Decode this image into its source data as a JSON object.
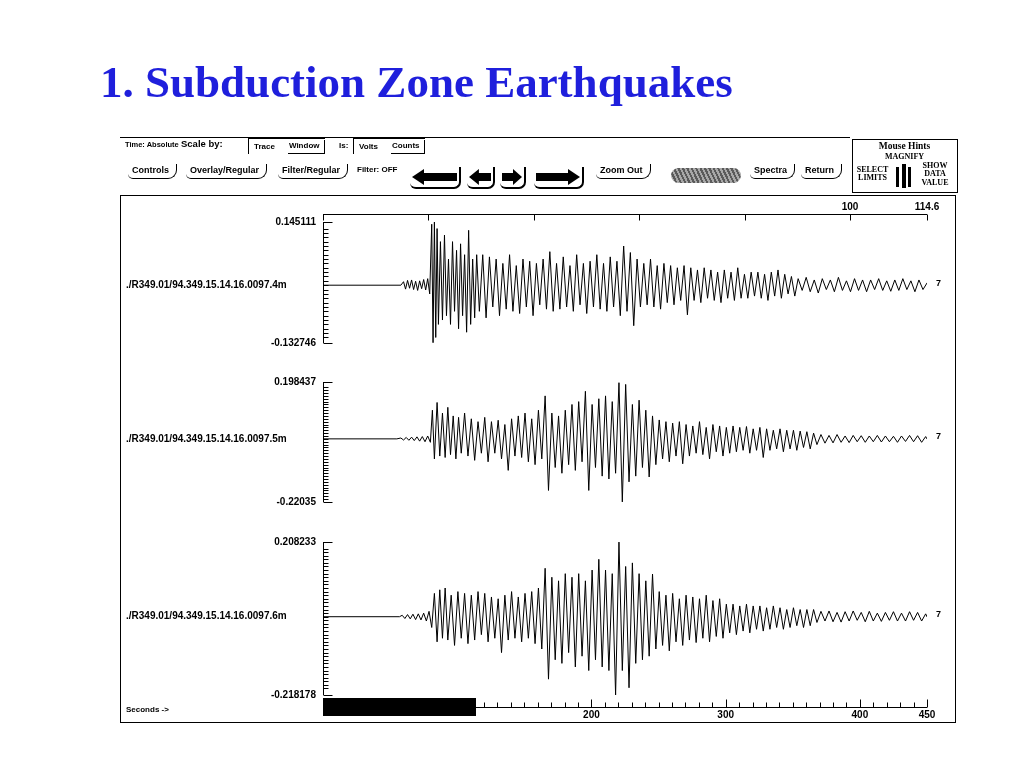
{
  "chart_data": [
    {
      "type": "other",
      "title": "1. Subduction Zone Earthquakes",
      "annotations": [
        "Time: Absolute",
        "Scale by:",
        "Trace",
        "Window",
        "Is:",
        "Volts",
        "Counts",
        "Controls",
        "Overlay/Regular",
        "Filter/Regular",
        "Filter: OFF",
        "Zoom Out",
        "Spectra",
        "Return",
        "Mouse Hints",
        "MAGNIFY",
        "SELECT LIMITS",
        "SHOW DATA VALUE"
      ]
    },
    {
      "type": "line",
      "xlim": [
        0,
        450
      ],
      "x2lim": [
        0,
        114.6
      ],
      "x2ticks": [
        {
          "value": 0,
          "label": null
        },
        {
          "value": 20,
          "label": null
        },
        {
          "value": 40,
          "label": null
        },
        {
          "value": 60,
          "label": null
        },
        {
          "value": 80,
          "label": null
        },
        100,
        114.6
      ],
      "ylim": [
        -0.132746,
        0.145111
      ],
      "yticks": [
        0.145111,
        {
          "value": 0.13,
          "label": null
        },
        {
          "value": 0.12,
          "label": null
        },
        {
          "value": 0.11,
          "label": null
        },
        {
          "value": 0.1,
          "label": null
        },
        {
          "value": 0.09,
          "label": null
        },
        {
          "value": 0.08,
          "label": null
        },
        {
          "value": 0.07,
          "label": null
        },
        {
          "value": 0.06,
          "label": null
        },
        {
          "value": 0.05,
          "label": null
        },
        {
          "value": 0.04,
          "label": null
        },
        {
          "value": 0.03,
          "label": null
        },
        {
          "value": 0.02,
          "label": null
        },
        {
          "value": 0.01,
          "label": null
        },
        {
          "value": 0,
          "label": null
        },
        {
          "value": -0.01,
          "label": null
        },
        {
          "value": -0.02,
          "label": null
        },
        {
          "value": -0.03,
          "label": null
        },
        {
          "value": -0.04,
          "label": null
        },
        {
          "value": -0.05,
          "label": null
        },
        {
          "value": -0.06,
          "label": null
        },
        {
          "value": -0.07,
          "label": null
        },
        {
          "value": -0.08,
          "label": null
        },
        {
          "value": -0.09,
          "label": null
        },
        {
          "value": -0.1,
          "label": null
        },
        {
          "value": -0.11,
          "label": null
        },
        {
          "value": -0.12,
          "label": null
        },
        -0.132746
      ],
      "tick_labels": "x2y",
      "annotations": [
        "7"
      ],
      "series": [
        {
          "name": "./R349.01/94.349.15.14.16.0097.4m",
          "color": "#000000",
          "x": [
            0,
            58,
            60,
            61.5,
            63,
            64.5,
            66,
            67.5,
            69,
            70.5,
            72,
            73.5,
            75,
            76.5,
            78,
            79.5,
            81,
            82,
            83,
            84,
            85,
            86,
            87.5,
            89,
            90.5,
            92,
            93.5,
            95,
            96.5,
            98,
            99.5,
            101,
            102.5,
            104,
            105.5,
            107,
            108.5,
            110,
            111.5,
            113,
            114.5,
            116.5,
            119,
            121.5,
            124,
            126.5,
            129,
            131.5,
            134,
            136.5,
            139,
            141.5,
            144,
            146.5,
            149,
            151.5,
            154,
            156.5,
            159,
            161.5,
            164,
            166.5,
            169,
            171.5,
            174,
            176.5,
            179,
            181.5,
            184,
            186.5,
            189,
            191.5,
            194,
            196.5,
            199,
            201.5,
            204,
            206.5,
            209,
            211.5,
            214,
            216.5,
            219,
            221.5,
            224,
            226.5,
            229,
            231.5,
            234,
            236.5,
            239,
            241.5,
            244,
            246.5,
            249,
            251.5,
            254,
            256.5,
            259,
            261.5,
            264,
            266.5,
            269,
            271.5,
            274,
            276.5,
            279,
            281.5,
            284,
            286.5,
            289,
            291.5,
            294,
            296.5,
            299,
            301.5,
            304,
            306.5,
            309,
            311.5,
            314,
            316.5,
            319,
            321.5,
            324,
            326.5,
            329,
            331.5,
            334,
            336.5,
            339,
            341.5,
            344,
            346.5,
            349,
            351.5,
            354,
            357,
            360,
            363,
            366,
            369,
            372,
            375,
            378,
            381,
            384,
            387,
            390,
            393,
            396,
            399,
            402,
            405,
            408,
            411,
            414,
            417,
            420,
            423,
            426,
            429,
            432,
            435,
            438,
            441,
            444,
            447,
            450
          ],
          "values": [
            0,
            0,
            0.008,
            -0.009,
            0.011,
            -0.007,
            0.012,
            -0.01,
            0.009,
            -0.012,
            0.01,
            -0.008,
            0.013,
            -0.011,
            0.015,
            -0.02,
            0.14,
            -0.132,
            0.145,
            -0.12,
            0.13,
            -0.09,
            0.1,
            -0.08,
            0.115,
            -0.07,
            0.06,
            -0.09,
            0.1,
            -0.06,
            0.08,
            -0.1,
            0.095,
            -0.07,
            0.07,
            -0.108,
            0.126,
            -0.09,
            0.06,
            -0.075,
            0.07,
            -0.06,
            0.07,
            -0.075,
            0.065,
            -0.05,
            0.06,
            -0.07,
            0.05,
            -0.055,
            0.07,
            -0.06,
            0.045,
            -0.065,
            0.06,
            -0.05,
            0.055,
            -0.07,
            0.05,
            -0.045,
            0.06,
            -0.055,
            0.077,
            -0.06,
            0.05,
            -0.055,
            0.065,
            -0.05,
            0.045,
            -0.06,
            0.07,
            -0.045,
            0.05,
            -0.065,
            0.055,
            -0.05,
            0.07,
            -0.055,
            0.05,
            -0.06,
            0.065,
            -0.05,
            0.055,
            -0.07,
            0.09,
            -0.06,
            0.075,
            -0.093,
            0.06,
            -0.05,
            0.05,
            -0.045,
            0.06,
            -0.05,
            0.045,
            -0.055,
            0.05,
            -0.04,
            0.045,
            -0.045,
            0.04,
            -0.035,
            0.045,
            -0.068,
            0.04,
            -0.035,
            0.035,
            -0.04,
            0.04,
            -0.03,
            0.035,
            -0.035,
            0.03,
            -0.04,
            0.035,
            -0.03,
            0.03,
            -0.035,
            0.04,
            -0.03,
            0.025,
            -0.03,
            0.03,
            -0.025,
            0.03,
            -0.03,
            0.025,
            -0.035,
            0.03,
            -0.025,
            0.035,
            -0.03,
            0.025,
            -0.02,
            0.02,
            -0.025,
            0.015,
            -0.012,
            0.018,
            -0.015,
            0.012,
            -0.018,
            0.015,
            -0.01,
            0.012,
            -0.015,
            0.018,
            -0.012,
            0.01,
            -0.015,
            0.015,
            -0.012,
            0.012,
            -0.015,
            0.012,
            -0.01,
            0.015,
            -0.012,
            0.01,
            -0.014,
            0.012,
            -0.012,
            0.015,
            -0.01,
            0.01,
            -0.015,
            0.012,
            -0.01,
            0.005
          ]
        }
      ]
    },
    {
      "type": "line",
      "xlim": [
        0,
        450
      ],
      "ylim": [
        -0.22035,
        0.198437
      ],
      "yticks": [
        0.198437,
        {
          "value": 0.18,
          "label": null
        },
        {
          "value": 0.17,
          "label": null
        },
        {
          "value": 0.16,
          "label": null
        },
        {
          "value": 0.15,
          "label": null
        },
        {
          "value": 0.14,
          "label": null
        },
        {
          "value": 0.13,
          "label": null
        },
        {
          "value": 0.12,
          "label": null
        },
        {
          "value": 0.11,
          "label": null
        },
        {
          "value": 0.1,
          "label": null
        },
        {
          "value": 0.09,
          "label": null
        },
        {
          "value": 0.08,
          "label": null
        },
        {
          "value": 0.07,
          "label": null
        },
        {
          "value": 0.06,
          "label": null
        },
        {
          "value": 0.05,
          "label": null
        },
        {
          "value": 0.04,
          "label": null
        },
        {
          "value": 0.03,
          "label": null
        },
        {
          "value": 0.02,
          "label": null
        },
        {
          "value": 0.01,
          "label": null
        },
        {
          "value": 0,
          "label": null
        },
        {
          "value": -0.01,
          "label": null
        },
        {
          "value": -0.02,
          "label": null
        },
        {
          "value": -0.03,
          "label": null
        },
        {
          "value": -0.04,
          "label": null
        },
        {
          "value": -0.05,
          "label": null
        },
        {
          "value": -0.06,
          "label": null
        },
        {
          "value": -0.07,
          "label": null
        },
        {
          "value": -0.08,
          "label": null
        },
        {
          "value": -0.09,
          "label": null
        },
        {
          "value": -0.1,
          "label": null
        },
        {
          "value": -0.11,
          "label": null
        },
        {
          "value": -0.12,
          "label": null
        },
        {
          "value": -0.13,
          "label": null
        },
        {
          "value": -0.14,
          "label": null
        },
        {
          "value": -0.15,
          "label": null
        },
        {
          "value": -0.16,
          "label": null
        },
        {
          "value": -0.17,
          "label": null
        },
        {
          "value": -0.18,
          "label": null
        },
        {
          "value": -0.19,
          "label": null
        },
        {
          "value": -0.2,
          "label": null
        },
        {
          "value": -0.21,
          "label": null
        },
        -0.22035
      ],
      "tick_labels": "y",
      "annotations": [
        "7"
      ],
      "series": [
        {
          "name": "./R349.01/94.349.15.14.16.0097.5m",
          "color": "#000000",
          "x": [
            0,
            55,
            58,
            60,
            62,
            64,
            66,
            68,
            70,
            72,
            74,
            76,
            78,
            80,
            81.5,
            83,
            85,
            87,
            89,
            91,
            93,
            95,
            97,
            99,
            101,
            103,
            105.5,
            108,
            110.5,
            113,
            115.5,
            118,
            120.5,
            123,
            125.5,
            128,
            130.5,
            133,
            135.5,
            138,
            140.5,
            143,
            145.5,
            148,
            150.5,
            153,
            155.5,
            158,
            160.5,
            163,
            165.5,
            168,
            170.5,
            173,
            175.5,
            178,
            180.5,
            183,
            185.5,
            188,
            190.5,
            193,
            195.5,
            198,
            200.5,
            203,
            205.5,
            208,
            210.5,
            213,
            215.5,
            218,
            220.5,
            223,
            225.5,
            228,
            230.5,
            233,
            235.5,
            238,
            240.5,
            243,
            245.5,
            248,
            250.5,
            253,
            255.5,
            258,
            260.5,
            263,
            265.5,
            268,
            270.5,
            273,
            275.5,
            278,
            280.5,
            283,
            285.5,
            288,
            290.5,
            293,
            295.5,
            298,
            300.5,
            303,
            305.5,
            308,
            310.5,
            313,
            315.5,
            318,
            320.5,
            323,
            325.5,
            328,
            330.5,
            333,
            335.5,
            338,
            340.5,
            343,
            345.5,
            348,
            350.5,
            353,
            355.5,
            358,
            360.5,
            363,
            365.5,
            368,
            371,
            374,
            377,
            380,
            383,
            386,
            389,
            392,
            395,
            398,
            401,
            404,
            407,
            410,
            413,
            416,
            419,
            422,
            425,
            428,
            431,
            434,
            437,
            440,
            443,
            446,
            449,
            450
          ],
          "values": [
            0,
            0,
            0.003,
            -0.004,
            0.005,
            -0.005,
            0.006,
            -0.006,
            0.007,
            -0.008,
            0.008,
            -0.01,
            0.01,
            -0.012,
            0.1,
            -0.07,
            0.127,
            -0.06,
            0.09,
            -0.065,
            0.11,
            -0.055,
            0.08,
            -0.07,
            0.075,
            -0.05,
            0.09,
            -0.06,
            0.07,
            -0.075,
            0.06,
            -0.05,
            0.075,
            -0.08,
            0.06,
            -0.05,
            0.065,
            -0.07,
            0.05,
            -0.11,
            0.07,
            -0.06,
            0.08,
            -0.065,
            0.09,
            -0.08,
            0.07,
            -0.09,
            0.1,
            -0.07,
            0.15,
            -0.18,
            0.09,
            -0.1,
            0.08,
            -0.12,
            0.1,
            -0.09,
            0.12,
            -0.11,
            0.13,
            -0.08,
            0.166,
            -0.18,
            0.12,
            -0.1,
            0.14,
            -0.13,
            0.15,
            -0.14,
            0.13,
            -0.12,
            0.196,
            -0.22,
            0.19,
            -0.15,
            0.12,
            -0.13,
            0.135,
            -0.1,
            0.1,
            -0.133,
            0.08,
            -0.09,
            0.066,
            -0.07,
            0.06,
            -0.08,
            0.055,
            -0.06,
            0.06,
            -0.087,
            0.05,
            -0.06,
            0.045,
            -0.05,
            0.06,
            -0.055,
            0.04,
            -0.07,
            0.05,
            -0.045,
            0.045,
            -0.06,
            0.04,
            -0.05,
            0.045,
            -0.045,
            0.04,
            -0.04,
            0.043,
            -0.05,
            0.035,
            -0.04,
            0.04,
            -0.065,
            0.035,
            -0.04,
            0.03,
            -0.035,
            0.035,
            -0.045,
            0.03,
            -0.035,
            0.03,
            -0.04,
            0.027,
            -0.03,
            0.025,
            -0.035,
            0.02,
            -0.02,
            0.015,
            -0.015,
            0.012,
            -0.014,
            0.015,
            -0.012,
            0.01,
            -0.013,
            0.012,
            -0.01,
            0.011,
            -0.012,
            0.01,
            -0.01,
            0.012,
            -0.011,
            0.01,
            -0.01,
            0.009,
            -0.012,
            0.01,
            -0.009,
            0.012,
            -0.01,
            0.011,
            -0.012,
            0.008,
            0
          ]
        }
      ]
    },
    {
      "type": "line",
      "xlim": [
        0,
        450
      ],
      "xticks": [
        {
          "value": 120,
          "label": null
        },
        {
          "value": 130,
          "label": null
        },
        {
          "value": 140,
          "label": null
        },
        {
          "value": 150,
          "label": null
        },
        {
          "value": 160,
          "label": null
        },
        {
          "value": 170,
          "label": null
        },
        {
          "value": 180,
          "label": null
        },
        {
          "value": 190,
          "label": null
        },
        200,
        {
          "value": 210,
          "label": null
        },
        {
          "value": 220,
          "label": null
        },
        {
          "value": 230,
          "label": null
        },
        {
          "value": 240,
          "label": null
        },
        {
          "value": 250,
          "label": null
        },
        {
          "value": 260,
          "label": null
        },
        {
          "value": 270,
          "label": null
        },
        {
          "value": 280,
          "label": null
        },
        {
          "value": 290,
          "label": null
        },
        300,
        {
          "value": 310,
          "label": null
        },
        {
          "value": 320,
          "label": null
        },
        {
          "value": 330,
          "label": null
        },
        {
          "value": 340,
          "label": null
        },
        {
          "value": 350,
          "label": null
        },
        {
          "value": 360,
          "label": null
        },
        {
          "value": 370,
          "label": null
        },
        {
          "value": 380,
          "label": null
        },
        {
          "value": 390,
          "label": null
        },
        400,
        {
          "value": 410,
          "label": null
        },
        {
          "value": 420,
          "label": null
        },
        {
          "value": 430,
          "label": null
        },
        {
          "value": 440,
          "label": null
        },
        450
      ],
      "ylim": [
        -0.218178,
        0.208233
      ],
      "yticks": [
        0.208233,
        {
          "value": 0.19,
          "label": null
        },
        {
          "value": 0.18,
          "label": null
        },
        {
          "value": 0.17,
          "label": null
        },
        {
          "value": 0.16,
          "label": null
        },
        {
          "value": 0.15,
          "label": null
        },
        {
          "value": 0.14,
          "label": null
        },
        {
          "value": 0.13,
          "label": null
        },
        {
          "value": 0.12,
          "label": null
        },
        {
          "value": 0.11,
          "label": null
        },
        {
          "value": 0.1,
          "label": null
        },
        {
          "value": 0.09,
          "label": null
        },
        {
          "value": 0.08,
          "label": null
        },
        {
          "value": 0.07,
          "label": null
        },
        {
          "value": 0.06,
          "label": null
        },
        {
          "value": 0.05,
          "label": null
        },
        {
          "value": 0.04,
          "label": null
        },
        {
          "value": 0.03,
          "label": null
        },
        {
          "value": 0.02,
          "label": null
        },
        {
          "value": 0.01,
          "label": null
        },
        {
          "value": 0,
          "label": null
        },
        {
          "value": -0.01,
          "label": null
        },
        {
          "value": -0.02,
          "label": null
        },
        {
          "value": -0.03,
          "label": null
        },
        {
          "value": -0.04,
          "label": null
        },
        {
          "value": -0.05,
          "label": null
        },
        {
          "value": -0.06,
          "label": null
        },
        {
          "value": -0.07,
          "label": null
        },
        {
          "value": -0.08,
          "label": null
        },
        {
          "value": -0.09,
          "label": null
        },
        {
          "value": -0.1,
          "label": null
        },
        {
          "value": -0.11,
          "label": null
        },
        {
          "value": -0.12,
          "label": null
        },
        {
          "value": -0.13,
          "label": null
        },
        {
          "value": -0.14,
          "label": null
        },
        {
          "value": -0.15,
          "label": null
        },
        {
          "value": -0.16,
          "label": null
        },
        {
          "value": -0.17,
          "label": null
        },
        {
          "value": -0.18,
          "label": null
        },
        {
          "value": -0.19,
          "label": null
        },
        {
          "value": -0.2,
          "label": null
        },
        -0.218178
      ],
      "annotations": [
        "7",
        "Seconds ->"
      ],
      "series": [
        {
          "name": "./R349.01/94.349.15.14.16.0097.6m",
          "color": "#000000",
          "x": [
            0,
            57,
            59,
            61,
            63,
            65,
            67,
            69,
            71,
            73,
            75,
            77,
            79,
            81,
            83,
            85,
            87,
            89,
            91,
            93,
            95.5,
            98,
            100.5,
            103,
            105.5,
            108,
            110.5,
            113,
            115.5,
            118,
            120.5,
            123,
            125.5,
            128,
            130.5,
            133,
            135.5,
            138,
            140.5,
            143,
            145.5,
            148,
            150.5,
            153,
            155.5,
            158,
            160.5,
            163,
            165.5,
            168,
            170.5,
            173,
            175.5,
            178,
            180.5,
            183,
            185.5,
            188,
            190.5,
            193,
            195.5,
            198,
            200.5,
            203,
            205.5,
            208,
            210.5,
            213,
            215.5,
            218,
            220.5,
            223,
            225.5,
            228,
            230.5,
            233,
            235.5,
            238,
            240.5,
            243,
            245.5,
            248,
            250.5,
            253,
            255.5,
            258,
            260.5,
            263,
            265.5,
            268,
            270.5,
            273,
            275.5,
            278,
            280.5,
            283,
            285.5,
            288,
            290.5,
            293,
            295.5,
            298,
            300.5,
            303,
            305.5,
            308,
            310.5,
            313,
            315.5,
            318,
            320.5,
            323,
            325.5,
            328,
            330.5,
            333,
            335.5,
            338,
            340.5,
            343,
            345.5,
            348,
            350.5,
            353,
            355.5,
            358,
            360.5,
            363,
            365.5,
            368,
            371,
            374,
            377,
            380,
            383,
            386,
            389,
            392,
            395,
            398,
            401,
            404,
            407,
            410,
            413,
            416,
            419,
            422,
            425,
            428,
            431,
            434,
            437,
            440,
            443,
            446,
            449,
            450
          ],
          "values": [
            0,
            0,
            0.004,
            -0.005,
            0.006,
            -0.006,
            0.007,
            -0.008,
            0.008,
            -0.009,
            0.01,
            -0.012,
            0.015,
            -0.03,
            0.065,
            -0.07,
            0.075,
            -0.06,
            0.08,
            -0.065,
            0.06,
            -0.08,
            0.07,
            -0.06,
            0.065,
            -0.075,
            0.06,
            -0.065,
            0.07,
            -0.05,
            0.065,
            -0.07,
            0.055,
            -0.06,
            0.05,
            -0.1,
            0.06,
            -0.065,
            0.07,
            -0.06,
            0.055,
            -0.07,
            0.065,
            -0.06,
            0.07,
            -0.075,
            0.08,
            -0.09,
            0.135,
            -0.174,
            0.11,
            -0.12,
            0.1,
            -0.13,
            0.12,
            -0.1,
            0.11,
            -0.14,
            0.12,
            -0.11,
            0.1,
            -0.15,
            0.13,
            -0.12,
            0.16,
            -0.14,
            0.13,
            -0.15,
            0.12,
            -0.218,
            0.208,
            -0.15,
            0.14,
            -0.198,
            0.15,
            -0.13,
            0.12,
            -0.12,
            0.1,
            -0.11,
            0.119,
            -0.09,
            0.07,
            -0.08,
            0.06,
            -0.095,
            0.065,
            -0.07,
            0.05,
            -0.08,
            0.06,
            -0.065,
            0.055,
            -0.072,
            0.05,
            -0.06,
            0.06,
            -0.07,
            0.045,
            -0.055,
            0.05,
            -0.06,
            0.035,
            -0.045,
            0.035,
            -0.05,
            0.03,
            -0.04,
            0.035,
            -0.045,
            0.03,
            -0.035,
            0.03,
            -0.04,
            0.025,
            -0.035,
            0.03,
            -0.03,
            0.025,
            -0.035,
            0.02,
            -0.03,
            0.025,
            -0.025,
            0.02,
            -0.03,
            0.02,
            -0.025,
            0.02,
            -0.016,
            0.015,
            -0.012,
            0.016,
            -0.014,
            0.012,
            -0.015,
            0.014,
            -0.012,
            0.016,
            -0.01,
            0.012,
            -0.014,
            0.015,
            -0.012,
            0.01,
            -0.013,
            0.012,
            -0.01,
            0.014,
            -0.012,
            0.01,
            -0.012,
            0.014,
            -0.01,
            0.012,
            -0.012,
            0.008,
            0
          ]
        }
      ]
    }
  ]
}
